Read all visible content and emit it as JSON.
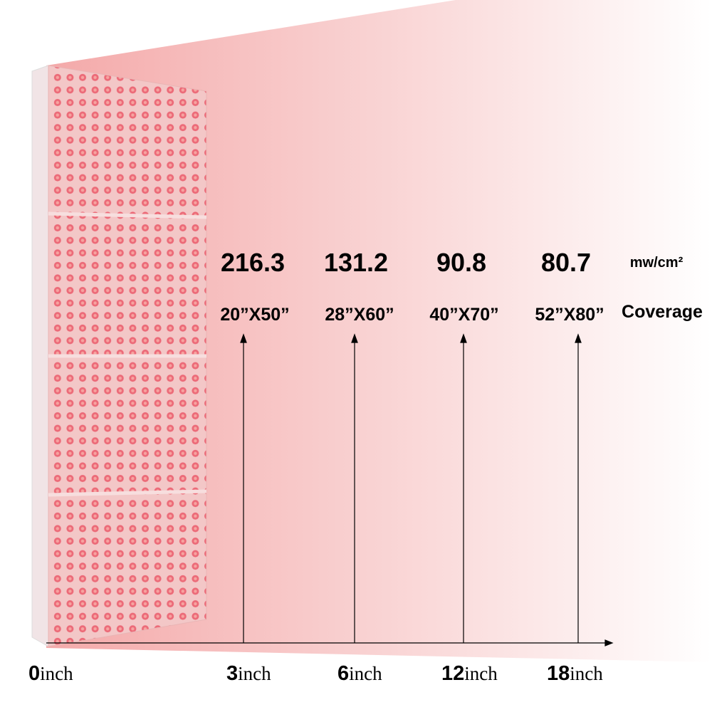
{
  "irradiance": {
    "values": [
      "216.3",
      "131.2",
      "90.8",
      "80.7"
    ],
    "unit": "mw/cm²"
  },
  "coverage": {
    "values": [
      "20”X50”",
      "28”X60”",
      "40”X70”",
      "52”X80”"
    ],
    "label": "Coverage"
  },
  "distances": [
    {
      "number": "0",
      "unit": "inch"
    },
    {
      "number": "3",
      "unit": "inch"
    },
    {
      "number": "6",
      "unit": "inch"
    },
    {
      "number": "12",
      "unit": "inch"
    },
    {
      "number": "18",
      "unit": "inch"
    }
  ]
}
